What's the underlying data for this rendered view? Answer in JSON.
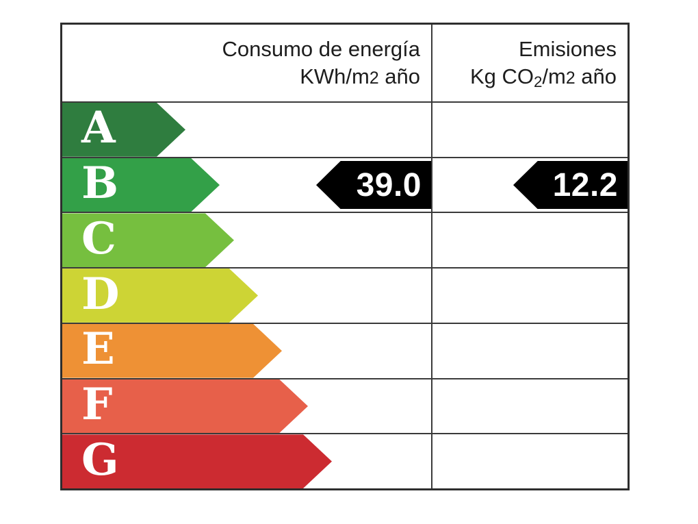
{
  "header": {
    "energy_col": {
      "line1": "Consumo de energía",
      "unit_prefix": "KWh/m",
      "unit_exp": "2",
      "unit_suffix": " año"
    },
    "emissions_col": {
      "line1": "Emisiones",
      "unit_prefix": "Kg CO",
      "unit_sub": "2",
      "unit_mid": "/m",
      "unit_exp": "2",
      "unit_suffix": " año"
    }
  },
  "ratings": [
    {
      "letter": "A",
      "color": "#2F7D3F",
      "arrow_width": 180
    },
    {
      "letter": "B",
      "color": "#33A048",
      "arrow_width": 230,
      "energy_value": "39.0",
      "emissions_value": "12.2"
    },
    {
      "letter": "C",
      "color": "#76BF3F",
      "arrow_width": 251
    },
    {
      "letter": "D",
      "color": "#CDD435",
      "arrow_width": 286
    },
    {
      "letter": "E",
      "color": "#EE9135",
      "arrow_width": 321
    },
    {
      "letter": "F",
      "color": "#E7604A",
      "arrow_width": 359
    },
    {
      "letter": "G",
      "color": "#CC2B31",
      "arrow_width": 394
    }
  ],
  "value_arrow": {
    "background": "#000000",
    "text_color": "#FFFFFF"
  },
  "grid": {
    "line_color": "#3a3a3a",
    "outer_border_color": "#2e2e2e"
  },
  "chart_data": {
    "type": "bar",
    "categories": [
      "A",
      "B",
      "C",
      "D",
      "E",
      "F",
      "G"
    ],
    "selected_rating": "B",
    "series": [
      {
        "name": "Consumo de energía KWh/m2 año",
        "rating": "B",
        "value": 39.0
      },
      {
        "name": "Emisiones Kg CO2/m2 año",
        "rating": "B",
        "value": 12.2
      }
    ],
    "bar_colors": [
      "#2F7D3F",
      "#33A048",
      "#76BF3F",
      "#CDD435",
      "#EE9135",
      "#E7604A",
      "#CC2B31"
    ],
    "legend_position": "none",
    "grid_on": true
  }
}
